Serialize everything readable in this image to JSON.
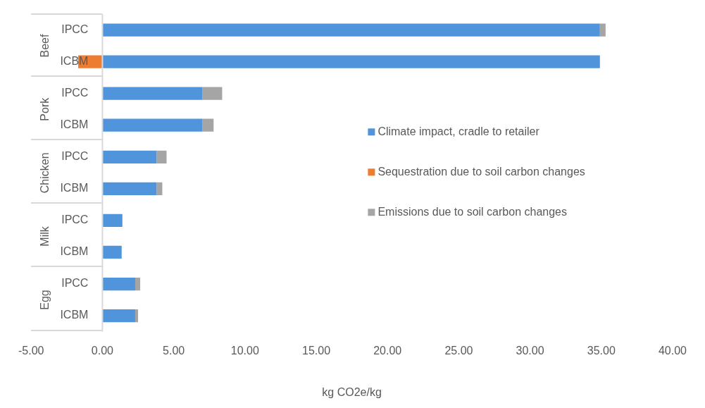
{
  "chart_data": {
    "type": "bar",
    "orientation": "horizontal",
    "stacked": true,
    "xlabel": "kg CO2e/kg",
    "categories": [
      "IPCC",
      "ICBM",
      "IPCC",
      "ICBM",
      "IPCC",
      "ICBM",
      "IPCC",
      "ICBM",
      "IPCC",
      "ICBM"
    ],
    "annotations": [
      "Beef",
      "Pork",
      "Chicken",
      "Milk",
      "Egg"
    ],
    "series": [
      {
        "name": "Climate impact, cradle to retailer",
        "color": "#5094db",
        "values": [
          34.9,
          34.9,
          7.0,
          7.0,
          3.8,
          3.8,
          1.4,
          1.35,
          2.3,
          2.3
        ]
      },
      {
        "name": "Sequestration due to soil carbon changes",
        "color": "#ed7d31",
        "values": [
          null,
          -1.7,
          null,
          null,
          null,
          null,
          null,
          null,
          null,
          null
        ]
      },
      {
        "name": "Emissions due to soil carbon changes",
        "color": "#a5a5a5",
        "values": [
          0.4,
          null,
          1.4,
          0.8,
          0.7,
          0.4,
          null,
          null,
          0.35,
          0.2
        ]
      }
    ],
    "xlim": [
      -5,
      40
    ],
    "xticks": [
      {
        "value": -5,
        "label": "-5.00"
      },
      {
        "value": 0,
        "label": "0.00"
      },
      {
        "value": 5,
        "label": "5.00"
      },
      {
        "value": 10,
        "label": "10.00"
      },
      {
        "value": 15,
        "label": "15.00"
      },
      {
        "value": 20,
        "label": "20.00"
      },
      {
        "value": 25,
        "label": "25.00"
      },
      {
        "value": 30,
        "label": "30.00"
      },
      {
        "value": 35,
        "label": "35.00"
      },
      {
        "value": 40,
        "label": "40.00"
      }
    ],
    "grid": false,
    "legend": "right"
  }
}
